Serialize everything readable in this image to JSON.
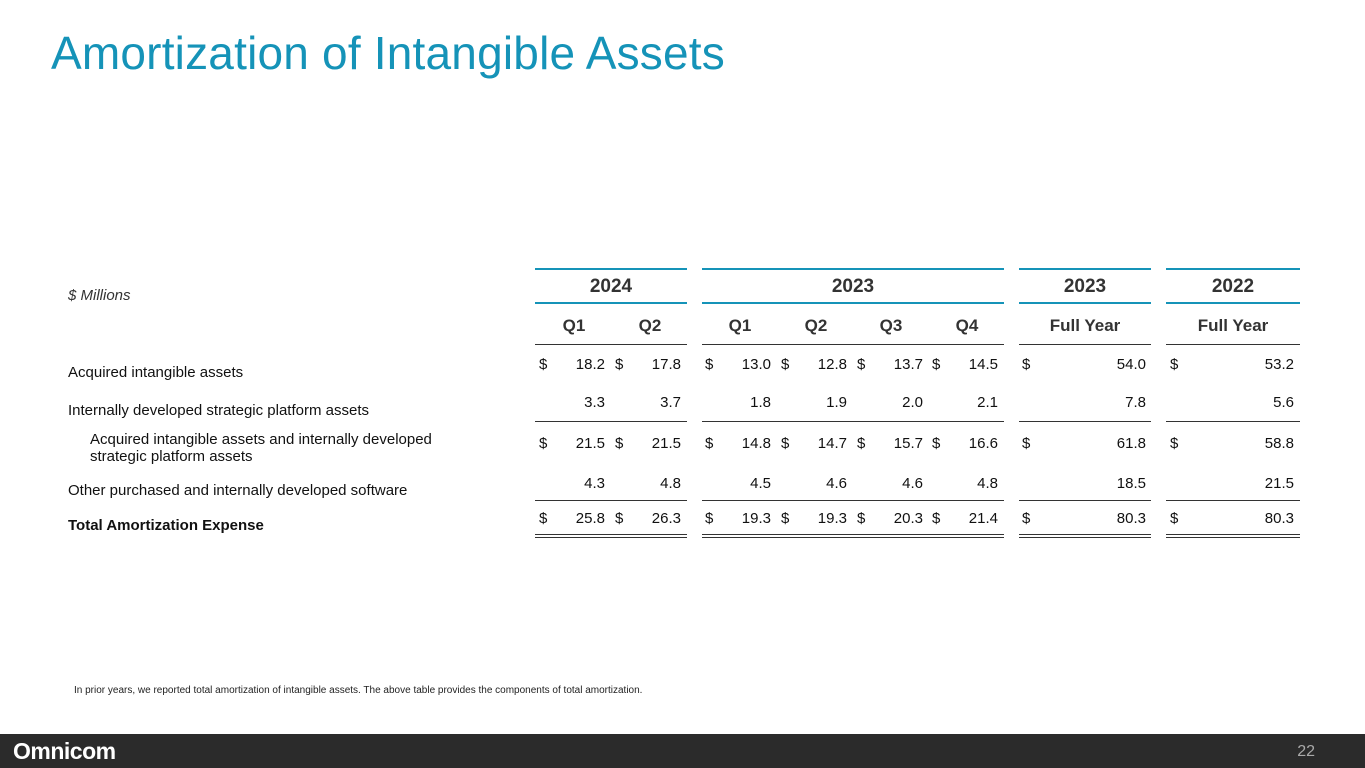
{
  "title": "Amortization of Intangible Assets",
  "units": "$ Millions",
  "groups": [
    "2024",
    "2023",
    "2023",
    "2022"
  ],
  "columns": [
    "Q1",
    "Q2",
    "Q1",
    "Q2",
    "Q3",
    "Q4",
    "Full Year",
    "Full Year"
  ],
  "currency": "$",
  "rows": [
    {
      "label": "Acquired intangible assets",
      "dollar": true,
      "values": [
        "18.2",
        "17.8",
        "13.0",
        "12.8",
        "13.7",
        "14.5",
        "54.0",
        "53.2"
      ]
    },
    {
      "label": "Internally developed strategic platform assets",
      "dollar": false,
      "values": [
        "3.3",
        "3.7",
        "1.8",
        "1.9",
        "2.0",
        "2.1",
        "7.8",
        "5.6"
      ]
    },
    {
      "label_line1": "Acquired intangible assets and internally developed",
      "label_line2": "strategic platform assets",
      "dollar": true,
      "values": [
        "21.5",
        "21.5",
        "14.8",
        "14.7",
        "15.7",
        "16.6",
        "61.8",
        "58.8"
      ]
    },
    {
      "label": "Other purchased and internally developed software",
      "dollar": false,
      "values": [
        "4.3",
        "4.8",
        "4.5",
        "4.6",
        "4.6",
        "4.8",
        "18.5",
        "21.5"
      ]
    },
    {
      "label": "Total Amortization Expense",
      "dollar": true,
      "values": [
        "25.8",
        "26.3",
        "19.3",
        "19.3",
        "20.3",
        "21.4",
        "80.3",
        "80.3"
      ]
    }
  ],
  "footnote": "In prior years, we reported total amortization of intangible assets. The above table provides the components of total amortization.",
  "footer": {
    "logo": "Omnicom",
    "page": "22"
  }
}
